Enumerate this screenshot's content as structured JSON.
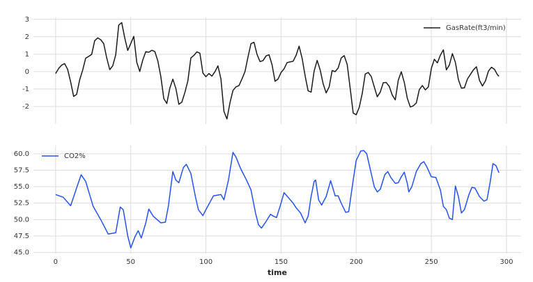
{
  "chart_data": [
    {
      "type": "line",
      "legend": "upper right",
      "grid": true,
      "xtick_labels": false,
      "xlim": [
        -14.75,
        309.75
      ],
      "ylim": [
        -3.0,
        3.11
      ],
      "xticks": [
        0,
        50,
        100,
        150,
        200,
        250,
        300
      ],
      "yticks": [
        -2,
        -1,
        0,
        1,
        2,
        3
      ],
      "x": [
        0,
        2,
        4,
        6,
        8,
        10,
        12,
        14,
        16,
        18,
        20,
        22,
        24,
        26,
        28,
        30,
        32,
        34,
        36,
        38,
        40,
        42,
        44,
        46,
        48,
        50,
        52,
        54,
        56,
        58,
        60,
        62,
        64,
        66,
        68,
        70,
        72,
        74,
        76,
        78,
        80,
        82,
        84,
        86,
        88,
        90,
        92,
        94,
        96,
        98,
        100,
        102,
        104,
        106,
        108,
        110,
        112,
        114,
        116,
        118,
        120,
        122,
        124,
        126,
        128,
        130,
        132,
        134,
        136,
        138,
        140,
        142,
        144,
        146,
        148,
        150,
        152,
        154,
        156,
        158,
        160,
        162,
        164,
        166,
        168,
        170,
        172,
        174,
        176,
        178,
        180,
        182,
        184,
        186,
        188,
        190,
        192,
        194,
        196,
        198,
        200,
        202,
        204,
        206,
        208,
        210,
        212,
        214,
        216,
        218,
        220,
        222,
        224,
        226,
        228,
        230,
        232,
        234,
        236,
        238,
        240,
        242,
        244,
        246,
        248,
        250,
        252,
        254,
        256,
        258,
        260,
        262,
        264,
        266,
        268,
        270,
        272,
        274,
        276,
        278,
        280,
        282,
        284,
        286,
        288,
        290,
        292,
        294,
        295
      ],
      "series": [
        {
          "name": "GasRate(ft3/min)",
          "color": "#1a1a1a",
          "values": [
            -0.109,
            0.178,
            0.373,
            0.461,
            0.127,
            -0.588,
            -1.421,
            -1.302,
            -0.475,
            0.088,
            0.771,
            0.875,
            0.987,
            1.775,
            1.934,
            1.832,
            1.608,
            0.79,
            0.115,
            0.331,
            0.96,
            2.67,
            2.812,
            1.929,
            1.214,
            1.608,
            2.023,
            0.535,
            0.009,
            0.671,
            1.146,
            1.112,
            1.223,
            1.157,
            0.62,
            -0.28,
            -1.551,
            -1.825,
            -0.944,
            -0.431,
            -0.96,
            -1.875,
            -1.746,
            -1.201,
            -0.524,
            0.788,
            0.93,
            1.137,
            1.054,
            -0.08,
            -0.288,
            -0.109,
            -0.255,
            -0.007,
            0.33,
            -0.423,
            -2.275,
            -2.716,
            -1.79,
            -1.081,
            -0.876,
            -0.8,
            -0.416,
            0.0,
            0.841,
            1.607,
            1.683,
            0.993,
            0.577,
            0.632,
            0.9,
            0.968,
            0.399,
            -0.553,
            -0.424,
            -0.049,
            0.161,
            0.517,
            0.56,
            0.592,
            0.933,
            1.46,
            0.772,
            -0.237,
            -1.099,
            -1.175,
            0.033,
            0.643,
            0.109,
            -0.697,
            -1.218,
            -0.873,
            0.063,
            0.0,
            0.209,
            0.782,
            0.918,
            0.416,
            -0.959,
            -2.378,
            -2.473,
            -2.053,
            -1.261,
            -0.137,
            -0.05,
            -0.276,
            -0.871,
            -1.439,
            -1.175,
            -0.634,
            -0.625,
            -0.848,
            -1.346,
            -1.619,
            -0.488,
            -0.007,
            -0.62,
            -1.525,
            -2.029,
            -1.961,
            -1.794,
            -1.03,
            -0.798,
            -1.047,
            -0.876,
            0.185,
            0.709,
            0.501,
            0.943,
            1.249,
            0.102,
            0.382,
            1.032,
            0.527,
            -0.458,
            -0.947,
            -0.928,
            -0.424,
            -0.158,
            0.102,
            0.28,
            -0.493,
            -0.824,
            -0.528,
            0.034,
            0.253,
            0.131,
            -0.182,
            -0.262
          ]
        }
      ]
    },
    {
      "type": "line",
      "legend": "upper left",
      "grid": true,
      "xtick_labels": true,
      "xlabel": "time",
      "xlim": [
        -14.75,
        309.75
      ],
      "ylim": [
        44.85,
        61.25
      ],
      "xticks": [
        0,
        50,
        100,
        150,
        200,
        250,
        300
      ],
      "yticks": [
        {
          "value": 45,
          "label": "45.0"
        },
        47.5,
        {
          "value": 50,
          "label": "50.0"
        },
        52.5,
        {
          "value": 55,
          "label": "55.0"
        },
        57.5,
        {
          "value": 60,
          "label": "60.0"
        }
      ],
      "x": [
        0,
        5,
        10,
        15,
        17,
        20,
        25,
        30,
        35,
        40,
        43,
        45,
        48,
        50,
        53,
        55,
        57,
        60,
        62,
        65,
        70,
        73,
        75,
        78,
        80,
        82,
        85,
        87,
        90,
        93,
        95,
        98,
        100,
        105,
        110,
        112,
        115,
        118,
        120,
        123,
        127,
        130,
        133,
        135,
        137,
        140,
        143,
        145,
        147,
        150,
        152,
        155,
        158,
        160,
        163,
        166,
        168,
        170,
        172,
        173,
        175,
        177,
        180,
        183,
        186,
        188,
        190,
        193,
        195,
        198,
        200,
        203,
        205,
        207,
        210,
        212,
        214,
        216,
        219,
        221,
        223,
        226,
        228,
        230,
        232,
        234,
        235,
        237,
        240,
        243,
        245,
        247,
        250,
        253,
        256,
        258,
        260,
        262,
        264,
        266,
        268,
        270,
        272,
        275,
        277,
        279,
        282,
        285,
        287,
        289,
        291,
        293,
        295
      ],
      "series": [
        {
          "name": "CO2%",
          "color": "#2451f0",
          "values": [
            53.8,
            53.4,
            52.1,
            55.5,
            56.8,
            55.8,
            52.0,
            50.0,
            47.8,
            48.0,
            51.9,
            51.5,
            47.5,
            45.7,
            47.5,
            48.3,
            47.2,
            49.5,
            51.6,
            50.5,
            49.5,
            49.6,
            52.0,
            57.3,
            56.0,
            55.6,
            57.9,
            58.4,
            57.0,
            53.5,
            51.5,
            50.6,
            51.5,
            53.6,
            53.8,
            53.0,
            56.0,
            60.2,
            59.5,
            57.8,
            56.0,
            54.5,
            51.0,
            49.2,
            48.7,
            49.7,
            50.8,
            50.5,
            50.3,
            52.5,
            54.1,
            53.3,
            52.5,
            51.8,
            51.0,
            49.5,
            50.5,
            53.5,
            55.8,
            56.0,
            53.0,
            52.2,
            53.5,
            55.9,
            53.6,
            53.6,
            52.5,
            51.1,
            51.2,
            56.0,
            59.0,
            60.4,
            60.5,
            60.0,
            57.0,
            55.0,
            54.2,
            54.6,
            56.8,
            57.3,
            56.4,
            55.5,
            55.6,
            56.5,
            57.2,
            55.5,
            54.2,
            55.0,
            57.3,
            58.5,
            58.8,
            58.0,
            56.5,
            56.4,
            54.5,
            52.0,
            51.5,
            50.2,
            50.0,
            55.1,
            53.5,
            51.0,
            51.5,
            53.8,
            54.9,
            54.8,
            53.5,
            52.8,
            53.0,
            55.5,
            58.5,
            58.2,
            57.1
          ]
        }
      ]
    }
  ]
}
